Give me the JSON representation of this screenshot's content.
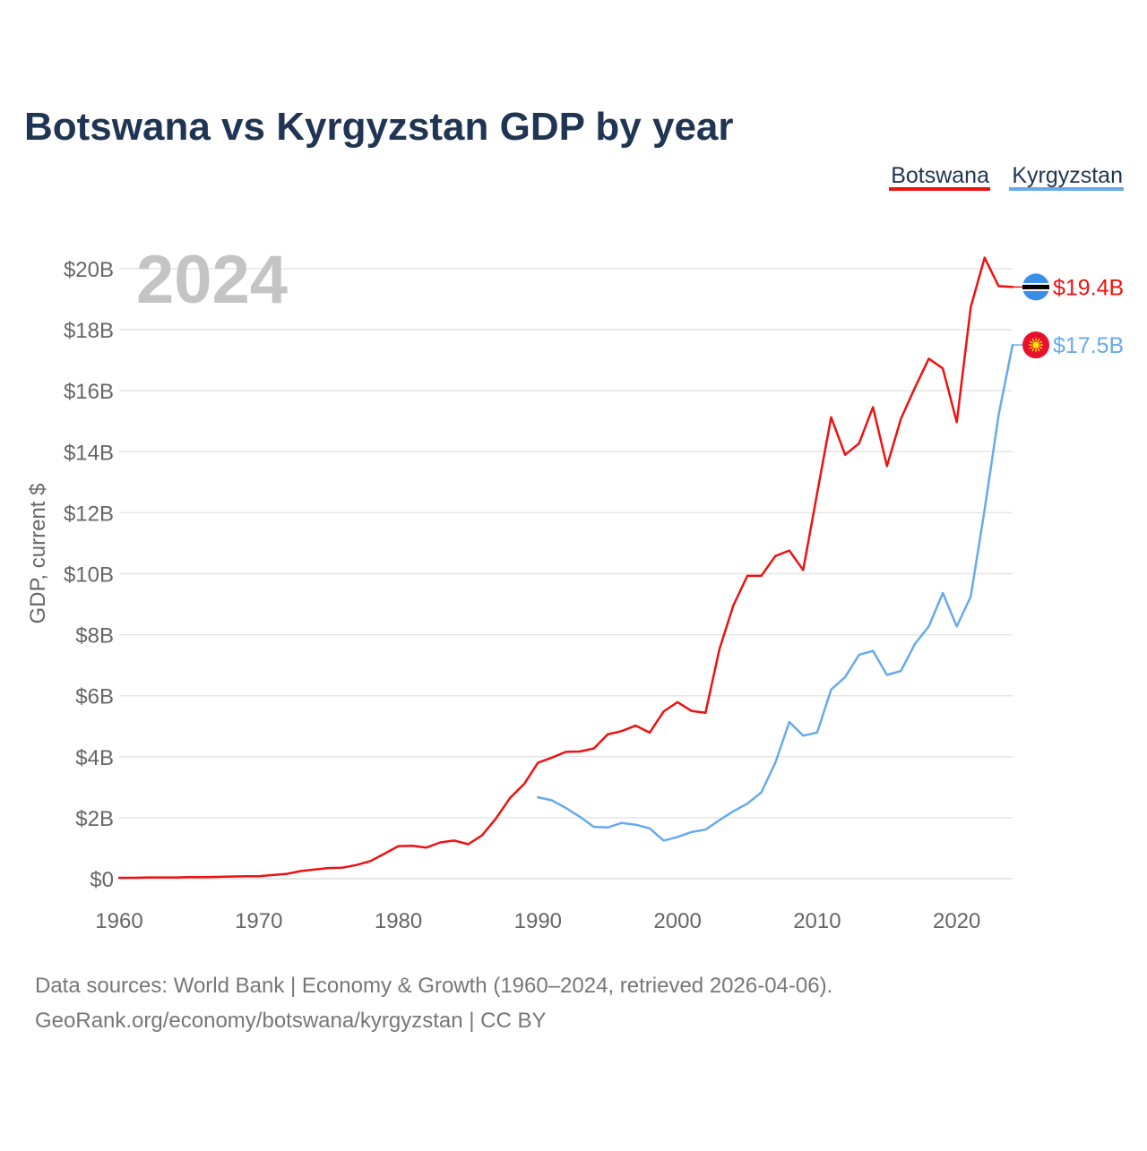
{
  "colors": {
    "title": "#1f3553",
    "botswana": "#ee1111",
    "kyrgyzstan": "#66aaee",
    "axis_text": "#666666",
    "year_watermark": "#c4c4c4",
    "grid": "#e6e6e6",
    "source_text": "#777777"
  },
  "chart_data": {
    "type": "line",
    "title": "Botswana vs Kyrgyzstan GDP by year",
    "xlabel": "",
    "ylabel": "GDP, current $",
    "watermark_year": "2024",
    "xlim": [
      1960,
      2024
    ],
    "ylim": [
      0,
      20
    ],
    "x_ticks": [
      1960,
      1970,
      1980,
      1990,
      2000,
      2010,
      2020
    ],
    "x_tick_labels": [
      "1960",
      "1970",
      "1980",
      "1990",
      "2000",
      "2010",
      "2020"
    ],
    "y_ticks": [
      0,
      2,
      4,
      6,
      8,
      10,
      12,
      14,
      16,
      18,
      20
    ],
    "y_tick_labels": [
      "$0",
      "$2B",
      "$4B",
      "$6B",
      "$8B",
      "$10B",
      "$12B",
      "$14B",
      "$16B",
      "$18B",
      "$20B"
    ],
    "legend_position": "top-right",
    "series": [
      {
        "name": "Botswana",
        "color": "#ee1111",
        "end_label": "$19.4B",
        "flag_icon": "botswana-flag-icon",
        "x": [
          1960,
          1961,
          1962,
          1963,
          1964,
          1965,
          1966,
          1967,
          1968,
          1969,
          1970,
          1971,
          1972,
          1973,
          1974,
          1975,
          1976,
          1977,
          1978,
          1979,
          1980,
          1981,
          1982,
          1983,
          1984,
          1985,
          1986,
          1987,
          1988,
          1989,
          1990,
          1991,
          1992,
          1993,
          1994,
          1995,
          1996,
          1997,
          1998,
          1999,
          2000,
          2001,
          2002,
          2003,
          2004,
          2005,
          2006,
          2007,
          2008,
          2009,
          2010,
          2011,
          2012,
          2013,
          2014,
          2015,
          2016,
          2017,
          2018,
          2019,
          2020,
          2021,
          2022,
          2023,
          2024
        ],
        "values": [
          0.03,
          0.03,
          0.04,
          0.04,
          0.04,
          0.05,
          0.05,
          0.06,
          0.07,
          0.08,
          0.08,
          0.12,
          0.16,
          0.25,
          0.3,
          0.35,
          0.36,
          0.45,
          0.58,
          0.82,
          1.07,
          1.08,
          1.02,
          1.19,
          1.25,
          1.13,
          1.42,
          1.98,
          2.65,
          3.1,
          3.8,
          3.97,
          4.16,
          4.17,
          4.27,
          4.73,
          4.84,
          5.02,
          4.79,
          5.48,
          5.79,
          5.5,
          5.44,
          7.53,
          8.96,
          9.93,
          9.93,
          10.58,
          10.76,
          10.12,
          12.64,
          15.13,
          13.9,
          14.27,
          15.46,
          13.53,
          15.08,
          16.1,
          17.05,
          16.73,
          14.97,
          18.74,
          20.36,
          19.43,
          19.4
        ]
      },
      {
        "name": "Kyrgyzstan",
        "color": "#66aaee",
        "end_label": "$17.5B",
        "flag_icon": "kyrgyzstan-flag-icon",
        "x": [
          1990,
          1991,
          1992,
          1993,
          1994,
          1995,
          1996,
          1997,
          1998,
          1999,
          2000,
          2001,
          2002,
          2003,
          2004,
          2005,
          2006,
          2007,
          2008,
          2009,
          2010,
          2011,
          2012,
          2013,
          2014,
          2015,
          2016,
          2017,
          2018,
          2019,
          2020,
          2021,
          2022,
          2023,
          2024
        ],
        "values": [
          2.67,
          2.57,
          2.32,
          2.03,
          1.7,
          1.68,
          1.83,
          1.77,
          1.65,
          1.25,
          1.37,
          1.53,
          1.61,
          1.92,
          2.21,
          2.46,
          2.83,
          3.8,
          5.14,
          4.69,
          4.79,
          6.2,
          6.61,
          7.34,
          7.47,
          6.68,
          6.81,
          7.7,
          8.27,
          9.37,
          8.27,
          9.25,
          12.1,
          15.2,
          17.5
        ]
      }
    ]
  },
  "legend": {
    "items": [
      {
        "label": "Botswana",
        "color": "#ee1111"
      },
      {
        "label": "Kyrgyzstan",
        "color": "#66aaee"
      }
    ]
  },
  "footer": {
    "source_line": "Data sources: World Bank | Economy & Growth (1960–2024, retrieved 2026-04-06).",
    "credit_line": "GeoRank.org/economy/botswana/kyrgyzstan | CC BY"
  }
}
